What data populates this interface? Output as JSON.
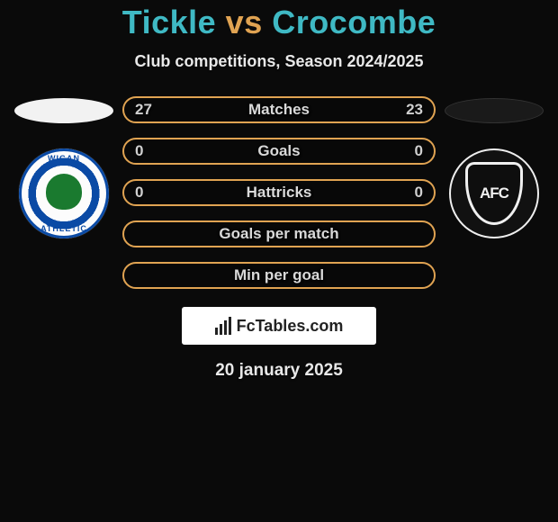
{
  "header": {
    "title_left": "Tickle",
    "title_vs": "vs",
    "title_right": "Crocombe",
    "title_color_players": "#3fb9c4",
    "title_color_vs": "#e0a352",
    "subtitle": "Club competitions, Season 2024/2025"
  },
  "players": {
    "left": {
      "oval_color": "#f2f2f2",
      "crest_label_top": "WIGAN",
      "crest_label_bottom": "ATHLETIC"
    },
    "right": {
      "oval_color": "#1a1a1a",
      "crest_label": "AFC"
    }
  },
  "stats": {
    "border_color": "#e0a352",
    "rows": [
      {
        "label": "Matches",
        "left": "27",
        "right": "23"
      },
      {
        "label": "Goals",
        "left": "0",
        "right": "0"
      },
      {
        "label": "Hattricks",
        "left": "0",
        "right": "0"
      },
      {
        "label": "Goals per match",
        "left": "",
        "right": ""
      },
      {
        "label": "Min per goal",
        "left": "",
        "right": ""
      }
    ]
  },
  "brand": {
    "text": "FcTables.com",
    "background": "#ffffff",
    "text_color": "#222222"
  },
  "footer": {
    "date": "20 january 2025"
  }
}
